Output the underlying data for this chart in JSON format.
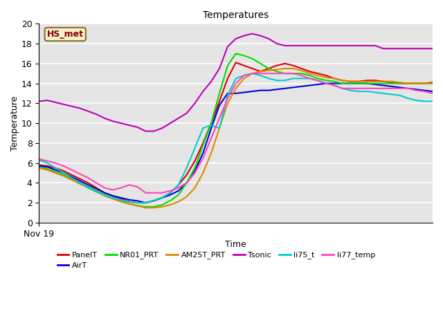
{
  "title": "Temperatures",
  "xlabel": "Time",
  "ylabel": "Temperature",
  "xlim": [
    0,
    48
  ],
  "ylim": [
    0,
    20
  ],
  "yticks": [
    0,
    2,
    4,
    6,
    8,
    10,
    12,
    14,
    16,
    18,
    20
  ],
  "xticklabels": [
    "Nov 19"
  ],
  "annotation": "HS_met",
  "bg_color": "#e5e5e5",
  "series": {
    "PanelT": {
      "color": "#dd0000",
      "x": [
        0,
        1,
        2,
        3,
        4,
        5,
        6,
        7,
        8,
        9,
        10,
        11,
        12,
        13,
        14,
        15,
        16,
        17,
        18,
        19,
        20,
        21,
        22,
        23,
        24,
        25,
        26,
        27,
        28,
        29,
        30,
        31,
        32,
        33,
        34,
        35,
        36,
        37,
        38,
        39,
        40,
        41,
        42,
        43,
        44,
        45,
        46,
        47,
        48
      ],
      "y": [
        5.8,
        5.7,
        5.5,
        5.2,
        4.8,
        4.4,
        4.0,
        3.5,
        3.0,
        2.7,
        2.4,
        2.1,
        2.0,
        2.0,
        2.2,
        2.5,
        3.0,
        3.8,
        4.8,
        6.2,
        8.0,
        10.0,
        12.2,
        14.5,
        16.1,
        15.8,
        15.5,
        15.2,
        15.5,
        15.8,
        16.0,
        15.8,
        15.5,
        15.2,
        15.0,
        14.8,
        14.5,
        14.3,
        14.2,
        14.2,
        14.3,
        14.3,
        14.2,
        14.1,
        14.0,
        14.0,
        14.0,
        14.0,
        14.1
      ]
    },
    "AirT": {
      "color": "#0000dd",
      "x": [
        0,
        1,
        2,
        3,
        4,
        5,
        6,
        7,
        8,
        9,
        10,
        11,
        12,
        13,
        14,
        15,
        16,
        17,
        18,
        19,
        20,
        21,
        22,
        23,
        24,
        25,
        26,
        27,
        28,
        29,
        30,
        31,
        32,
        33,
        34,
        35,
        36,
        37,
        38,
        39,
        40,
        41,
        42,
        43,
        44,
        45,
        46,
        47,
        48
      ],
      "y": [
        5.7,
        5.6,
        5.3,
        5.0,
        4.6,
        4.2,
        3.8,
        3.4,
        3.0,
        2.7,
        2.5,
        2.3,
        2.2,
        2.0,
        2.2,
        2.5,
        2.8,
        3.2,
        4.0,
        5.2,
        7.0,
        9.5,
        11.8,
        13.0,
        13.0,
        13.1,
        13.2,
        13.3,
        13.3,
        13.4,
        13.5,
        13.6,
        13.7,
        13.8,
        13.9,
        14.0,
        14.0,
        14.0,
        14.0,
        14.0,
        14.0,
        13.9,
        13.8,
        13.7,
        13.6,
        13.5,
        13.4,
        13.3,
        13.2
      ]
    },
    "NR01_PRT": {
      "color": "#00dd00",
      "x": [
        0,
        1,
        2,
        3,
        4,
        5,
        6,
        7,
        8,
        9,
        10,
        11,
        12,
        13,
        14,
        15,
        16,
        17,
        18,
        19,
        20,
        21,
        22,
        23,
        24,
        25,
        26,
        27,
        28,
        29,
        30,
        31,
        32,
        33,
        34,
        35,
        36,
        37,
        38,
        39,
        40,
        41,
        42,
        43,
        44,
        45,
        46,
        47,
        48
      ],
      "y": [
        5.6,
        5.4,
        5.1,
        4.8,
        4.4,
        4.0,
        3.6,
        3.2,
        2.8,
        2.5,
        2.2,
        1.9,
        1.7,
        1.6,
        1.6,
        1.8,
        2.2,
        2.8,
        4.0,
        5.5,
        7.8,
        10.0,
        13.0,
        15.8,
        17.0,
        16.8,
        16.5,
        16.0,
        15.5,
        15.2,
        15.0,
        15.0,
        15.0,
        14.8,
        14.5,
        14.3,
        14.2,
        14.0,
        14.0,
        14.0,
        14.0,
        14.0,
        14.0,
        14.0,
        14.0,
        14.0,
        14.0,
        14.0,
        14.0
      ]
    },
    "AM25T_PRT": {
      "color": "#dd8800",
      "x": [
        0,
        1,
        2,
        3,
        4,
        5,
        6,
        7,
        8,
        9,
        10,
        11,
        12,
        13,
        14,
        15,
        16,
        17,
        18,
        19,
        20,
        21,
        22,
        23,
        24,
        25,
        26,
        27,
        28,
        29,
        30,
        31,
        32,
        33,
        34,
        35,
        36,
        37,
        38,
        39,
        40,
        41,
        42,
        43,
        44,
        45,
        46,
        47,
        48
      ],
      "y": [
        5.5,
        5.3,
        5.0,
        4.7,
        4.3,
        3.9,
        3.5,
        3.1,
        2.7,
        2.4,
        2.1,
        1.9,
        1.7,
        1.5,
        1.5,
        1.6,
        1.8,
        2.1,
        2.6,
        3.5,
        5.0,
        7.0,
        9.5,
        12.0,
        13.5,
        14.5,
        15.0,
        15.2,
        15.3,
        15.4,
        15.5,
        15.5,
        15.3,
        15.0,
        14.8,
        14.6,
        14.5,
        14.3,
        14.2,
        14.2,
        14.2,
        14.2,
        14.2,
        14.2,
        14.1,
        14.0,
        14.0,
        14.0,
        14.0
      ]
    },
    "Tsonic": {
      "color": "#bb00bb",
      "x": [
        0,
        1,
        2,
        3,
        4,
        5,
        6,
        7,
        8,
        9,
        10,
        11,
        12,
        13,
        14,
        15,
        16,
        17,
        18,
        19,
        20,
        21,
        22,
        23,
        24,
        25,
        26,
        27,
        28,
        29,
        30,
        31,
        32,
        33,
        34,
        35,
        36,
        37,
        38,
        39,
        40,
        41,
        42,
        43,
        44,
        45,
        46,
        47,
        48
      ],
      "y": [
        12.2,
        12.3,
        12.1,
        11.9,
        11.7,
        11.5,
        11.2,
        10.9,
        10.5,
        10.2,
        10.0,
        9.8,
        9.6,
        9.2,
        9.2,
        9.5,
        10.0,
        10.5,
        11.0,
        12.0,
        13.2,
        14.2,
        15.5,
        17.7,
        18.5,
        18.8,
        19.0,
        18.8,
        18.5,
        18.0,
        17.8,
        17.8,
        17.8,
        17.8,
        17.8,
        17.8,
        17.8,
        17.8,
        17.8,
        17.8,
        17.8,
        17.8,
        17.5,
        17.5,
        17.5,
        17.5,
        17.5,
        17.5,
        17.5
      ]
    },
    "li75_t": {
      "color": "#00cccc",
      "x": [
        0,
        1,
        2,
        3,
        4,
        5,
        6,
        7,
        8,
        9,
        10,
        11,
        12,
        13,
        14,
        15,
        16,
        17,
        18,
        19,
        20,
        21,
        22,
        23,
        24,
        25,
        26,
        27,
        28,
        29,
        30,
        31,
        32,
        33,
        34,
        35,
        36,
        37,
        38,
        39,
        40,
        41,
        42,
        43,
        44,
        45,
        46,
        47,
        48
      ],
      "y": [
        6.3,
        6.0,
        5.5,
        5.0,
        4.5,
        4.0,
        3.5,
        3.1,
        2.8,
        2.5,
        2.3,
        2.1,
        2.0,
        2.0,
        2.2,
        2.5,
        3.0,
        3.8,
        5.5,
        7.5,
        9.5,
        9.8,
        9.5,
        12.8,
        14.5,
        14.8,
        15.0,
        14.8,
        14.5,
        14.3,
        14.3,
        14.5,
        14.5,
        14.5,
        14.3,
        14.0,
        13.8,
        13.5,
        13.3,
        13.2,
        13.2,
        13.1,
        13.0,
        12.9,
        12.8,
        12.5,
        12.3,
        12.2,
        12.2
      ]
    },
    "li77_temp": {
      "color": "#ff44bb",
      "x": [
        0,
        1,
        2,
        3,
        4,
        5,
        6,
        7,
        8,
        9,
        10,
        11,
        12,
        13,
        14,
        15,
        16,
        17,
        18,
        19,
        20,
        21,
        22,
        23,
        24,
        25,
        26,
        27,
        28,
        29,
        30,
        31,
        32,
        33,
        34,
        35,
        36,
        37,
        38,
        39,
        40,
        41,
        42,
        43,
        44,
        45,
        46,
        47,
        48
      ],
      "y": [
        6.4,
        6.2,
        6.0,
        5.7,
        5.3,
        4.9,
        4.5,
        4.0,
        3.5,
        3.3,
        3.5,
        3.8,
        3.6,
        3.0,
        3.0,
        3.0,
        3.2,
        3.5,
        4.0,
        5.0,
        6.5,
        8.5,
        10.5,
        12.5,
        14.0,
        14.8,
        15.0,
        15.0,
        15.0,
        15.0,
        15.0,
        15.0,
        14.8,
        14.5,
        14.3,
        14.0,
        13.8,
        13.5,
        13.5,
        13.5,
        13.5,
        13.5,
        13.5,
        13.5,
        13.5,
        13.5,
        13.3,
        13.2,
        13.0
      ]
    }
  }
}
